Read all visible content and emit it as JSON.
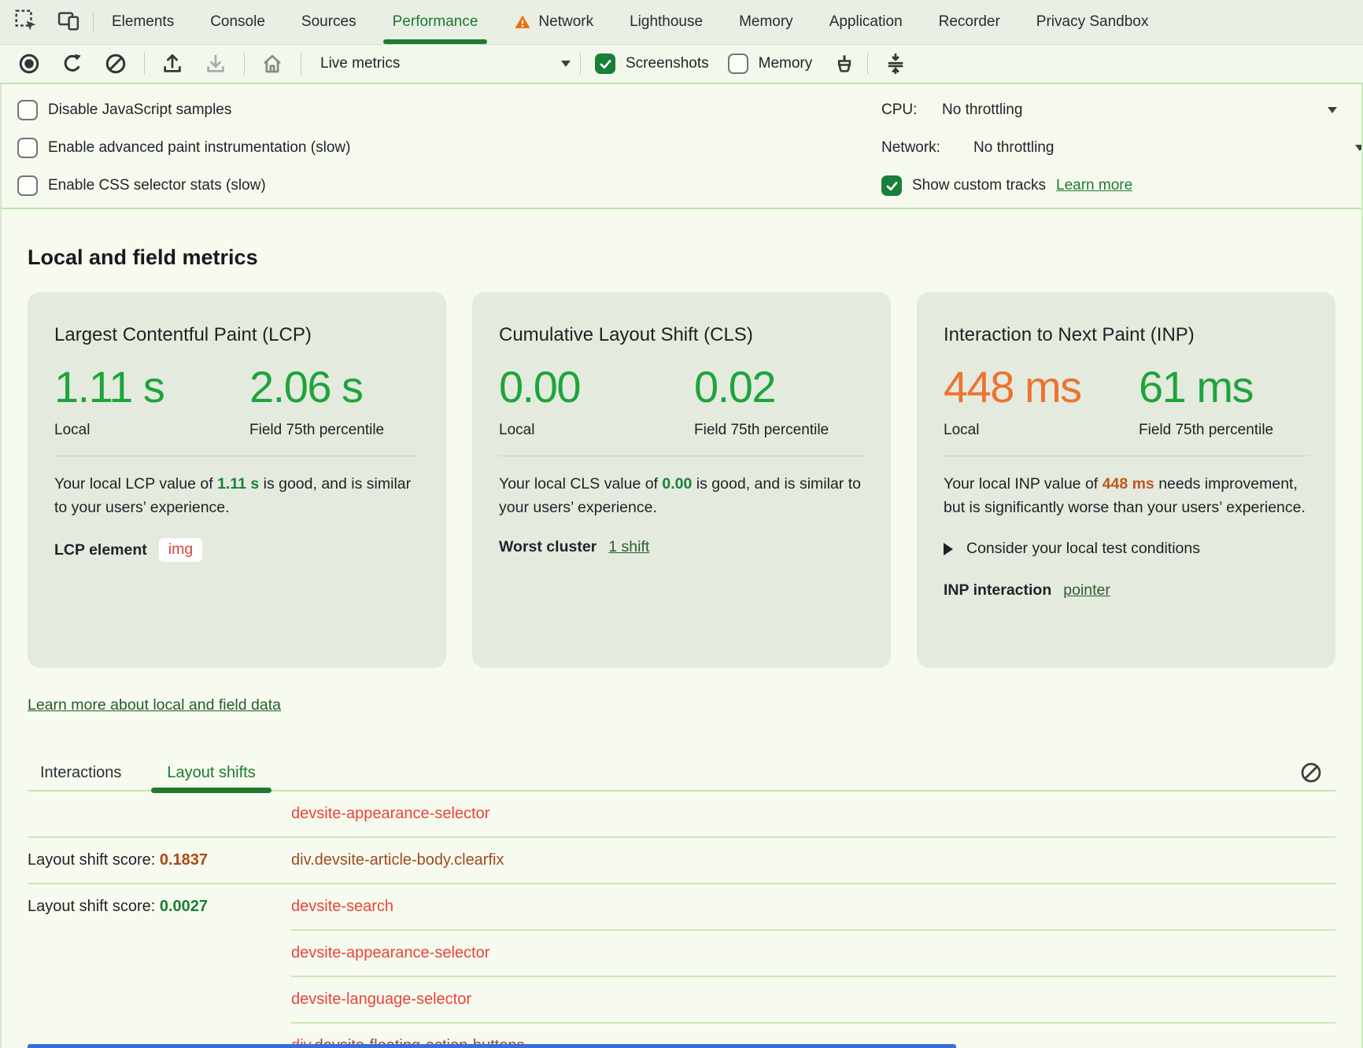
{
  "tabbar": {
    "tabs": [
      {
        "label": "Elements",
        "active": false,
        "warning": false
      },
      {
        "label": "Console",
        "active": false,
        "warning": false
      },
      {
        "label": "Sources",
        "active": false,
        "warning": false
      },
      {
        "label": "Performance",
        "active": true,
        "warning": false
      },
      {
        "label": "Network",
        "active": false,
        "warning": true
      },
      {
        "label": "Lighthouse",
        "active": false,
        "warning": false
      },
      {
        "label": "Memory",
        "active": false,
        "warning": false
      },
      {
        "label": "Application",
        "active": false,
        "warning": false
      },
      {
        "label": "Recorder",
        "active": false,
        "warning": false
      },
      {
        "label": "Privacy Sandbox",
        "active": false,
        "warning": false
      }
    ],
    "active_color": "#187a33",
    "warning_color": "#e8710a"
  },
  "toolbar": {
    "mode_select_value": "Live metrics",
    "screenshots": {
      "label": "Screenshots",
      "checked": true
    },
    "memory": {
      "label": "Memory",
      "checked": false
    },
    "checkbox_checked_color": "#188038"
  },
  "options": {
    "checkboxes": [
      {
        "label": "Disable JavaScript samples",
        "checked": false
      },
      {
        "label": "Enable advanced paint instrumentation (slow)",
        "checked": false
      },
      {
        "label": "Enable CSS selector stats (slow)",
        "checked": false
      }
    ],
    "cpu": {
      "label": "CPU:",
      "value": "No throttling"
    },
    "network": {
      "label": "Network:",
      "value": "No throttling"
    },
    "custom_tracks": {
      "label": "Show custom tracks",
      "checked": true,
      "link": "Learn more"
    }
  },
  "metrics": {
    "heading": "Local and field metrics",
    "good_color": "#1ea43c",
    "needs_improvement_color": "#ee7231",
    "cards": [
      {
        "title": "Largest Contentful Paint (LCP)",
        "local": {
          "value": "1.11 s",
          "color": "#1ea43c",
          "label": "Local"
        },
        "field": {
          "value": "2.06 s",
          "color": "#1ea43c",
          "label": "Field 75th percentile"
        },
        "desc_before": "Your local LCP value of ",
        "desc_value": "1.11 s",
        "desc_value_color": "#188038",
        "desc_after": " is good, and is similar to your users’ experience.",
        "footer_label": "LCP element",
        "footer_chip": "img",
        "footer_chip_color": "#df4438"
      },
      {
        "title": "Cumulative Layout Shift (CLS)",
        "local": {
          "value": "0.00",
          "color": "#1ea43c",
          "label": "Local"
        },
        "field": {
          "value": "0.02",
          "color": "#1ea43c",
          "label": "Field 75th percentile"
        },
        "desc_before": "Your local CLS value of ",
        "desc_value": "0.00",
        "desc_value_color": "#188038",
        "desc_after": " is good, and is similar to your users’ experience.",
        "footer_label": "Worst cluster",
        "footer_link": "1 shift"
      },
      {
        "title": "Interaction to Next Paint (INP)",
        "local": {
          "value": "448 ms",
          "color": "#ee7231",
          "label": "Local"
        },
        "field": {
          "value": "61 ms",
          "color": "#1ea43c",
          "label": "Field 75th percentile"
        },
        "desc_before": "Your local INP value of ",
        "desc_value": "448 ms",
        "desc_value_color": "#c05621",
        "desc_after": " needs improvement, but is significantly worse than your users’ experience.",
        "disclosure_label": "Consider your local test conditions",
        "footer_label": "INP interaction",
        "footer_link": "pointer"
      }
    ],
    "learn_more_link": "Learn more about local and field data"
  },
  "log": {
    "tabs": [
      {
        "label": "Interactions",
        "active": false
      },
      {
        "label": "Layout shifts",
        "active": true
      }
    ],
    "rows": [
      {
        "separator": "none",
        "element": [
          {
            "text": "devsite-appearance-selector",
            "color": "#e8453c"
          }
        ]
      },
      {
        "separator": "full",
        "score_label": "Layout shift score: ",
        "score": "0.1837",
        "score_color": "#aa4a12",
        "element": [
          {
            "text": "div.devsite-article-body.clearfix",
            "color": "#a04a20"
          }
        ]
      },
      {
        "separator": "full",
        "score_label": "Layout shift score: ",
        "score": "0.0027",
        "score_color": "#1b7f33",
        "element": [
          {
            "text": "devsite-search",
            "color": "#e8453c"
          }
        ]
      },
      {
        "separator": "indent",
        "element": [
          {
            "text": "devsite-appearance-selector",
            "color": "#e8453c"
          }
        ]
      },
      {
        "separator": "indent",
        "element": [
          {
            "text": "devsite-language-selector",
            "color": "#e8453c"
          }
        ]
      },
      {
        "separator": "indent",
        "element": [
          {
            "text": "div",
            "color": "#e8453c"
          },
          {
            "text": ".devsite-floating-action-buttons",
            "color": "#9c4a22"
          }
        ]
      }
    ]
  }
}
